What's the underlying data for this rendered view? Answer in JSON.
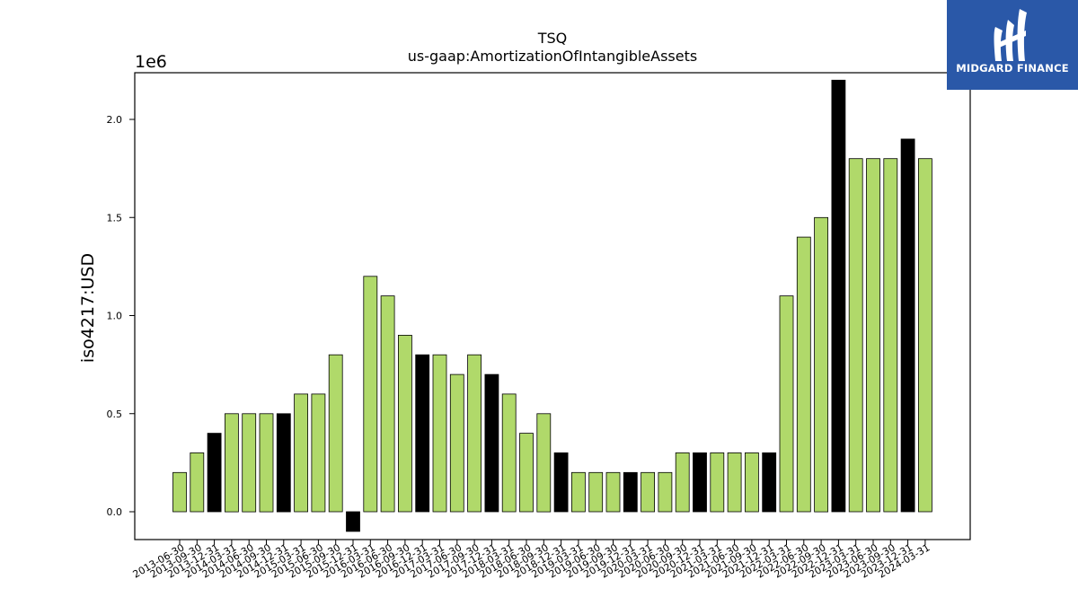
{
  "brand": {
    "name": "MIDGARD FINANCE",
    "bg_color": "#2a58a8"
  },
  "colors": {
    "bar_default": "#b0d96a",
    "bar_highlight": "#000000",
    "edge": "#000000"
  },
  "chart_data": {
    "type": "bar",
    "title": "TSQ",
    "subtitle": "us-gaap:AmortizationOfIntangibleAssets",
    "ylabel": "iso4217:USD",
    "xlabel": "",
    "offset_label": "1e6",
    "ylim": [
      -0.15,
      2.2
    ],
    "yticks": [
      0.0,
      0.5,
      1.0,
      1.5,
      2.0
    ],
    "ytick_labels": [
      "0.0",
      "0.5",
      "1.0",
      "1.5",
      "2.0"
    ],
    "grid": false,
    "categories": [
      "2013-06-30",
      "2013-09-30",
      "2013-12-31",
      "2014-03-31",
      "2014-06-30",
      "2014-09-30",
      "2014-12-31",
      "2015-03-31",
      "2015-06-30",
      "2015-09-30",
      "2015-12-31",
      "2016-03-31",
      "2016-06-30",
      "2016-09-30",
      "2016-12-31",
      "2017-03-31",
      "2017-06-30",
      "2017-09-30",
      "2017-12-31",
      "2018-03-31",
      "2018-06-30",
      "2018-09-30",
      "2018-12-31",
      "2019-03-31",
      "2019-06-30",
      "2019-09-30",
      "2019-12-31",
      "2020-03-31",
      "2020-06-30",
      "2020-09-30",
      "2020-12-31",
      "2021-03-31",
      "2021-06-30",
      "2021-09-30",
      "2021-12-31",
      "2022-03-31",
      "2022-06-30",
      "2022-09-30",
      "2022-12-31",
      "2023-03-31",
      "2023-06-30",
      "2023-09-30",
      "2023-12-31",
      "2024-03-31"
    ],
    "values": [
      0.2,
      0.3,
      0.4,
      0.5,
      0.5,
      0.5,
      0.5,
      0.6,
      0.6,
      0.8,
      -0.1,
      1.2,
      1.1,
      0.9,
      0.8,
      0.8,
      0.7,
      0.8,
      0.7,
      0.6,
      0.4,
      0.5,
      0.3,
      0.2,
      0.2,
      0.2,
      0.2,
      0.2,
      0.2,
      0.3,
      0.3,
      0.3,
      0.3,
      0.3,
      0.3,
      1.1,
      1.4,
      1.5,
      2.2,
      1.8,
      1.8,
      1.8,
      1.9,
      1.8
    ],
    "highlight": [
      false,
      false,
      true,
      false,
      false,
      false,
      true,
      false,
      false,
      false,
      true,
      false,
      false,
      false,
      true,
      false,
      false,
      false,
      true,
      false,
      false,
      false,
      true,
      false,
      false,
      false,
      true,
      false,
      false,
      false,
      true,
      false,
      false,
      false,
      true,
      false,
      false,
      false,
      true,
      false,
      false,
      false,
      true,
      false
    ]
  }
}
